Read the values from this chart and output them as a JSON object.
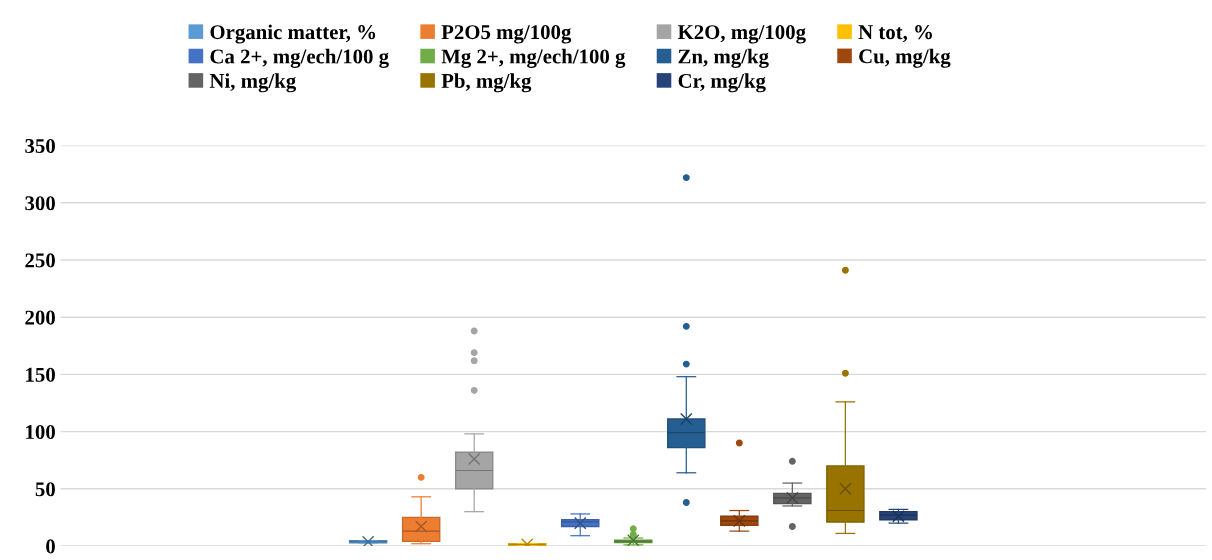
{
  "chart_data": {
    "type": "box",
    "categories": [
      null
    ],
    "ylim": [
      0,
      350
    ],
    "yticks": [
      0,
      50,
      100,
      150,
      200,
      250,
      300,
      350
    ],
    "grid": "y",
    "legend": "top",
    "tick_labels": "y",
    "series": [
      {
        "name": "Organic matter, %",
        "color": "#5b9bd5",
        "boxes": [
          {
            "low": 2.7,
            "q1": 2.7,
            "median": 3.7,
            "q3": 4.7,
            "high": 4.7,
            "mean": 3.7
          }
        ]
      },
      {
        "name": "P2O5 mg/100g",
        "color": "#ed7d31",
        "boxes": [
          {
            "low": 2,
            "q1": 4,
            "median": 13,
            "q3": 25,
            "high": 43,
            "mean": 17,
            "outliers": [
              60
            ]
          }
        ]
      },
      {
        "name": "K2O, mg/100g",
        "color": "#a5a5a5",
        "boxes": [
          {
            "low": 30,
            "q1": 50,
            "median": 66,
            "q3": 82,
            "high": 98,
            "mean": 76,
            "outliers": [
              136,
              162,
              169,
              188
            ]
          }
        ]
      },
      {
        "name": "N tot, %",
        "color": "#ffc000",
        "boxes": [
          {
            "low": 0.7,
            "q1": 0.7,
            "median": 1.3,
            "q3": 2,
            "high": 2,
            "mean": 1.5
          }
        ]
      },
      {
        "name": "Ca 2+, mg/ech/100 g",
        "color": "#4472c4",
        "boxes": [
          {
            "low": 9,
            "q1": 17,
            "median": 21,
            "q3": 23,
            "high": 28,
            "mean": 20
          }
        ]
      },
      {
        "name": "Mg 2+, mg/ech/100 g",
        "color": "#70ad47",
        "boxes": [
          {
            "low": 1,
            "q1": 3,
            "median": 4,
            "q3": 5,
            "high": 7,
            "mean": 5,
            "outliers": [
              8,
              10,
              15
            ]
          }
        ]
      },
      {
        "name": "Zn, mg/kg",
        "color": "#255e91",
        "boxes": [
          {
            "low": 64,
            "q1": 86,
            "median": 99,
            "q3": 111,
            "high": 148,
            "mean": 111,
            "outliers": [
              38,
              159,
              192,
              322
            ]
          }
        ]
      },
      {
        "name": "Cu, mg/kg",
        "color": "#9e480e",
        "boxes": [
          {
            "low": 13,
            "q1": 18,
            "median": 22,
            "q3": 26,
            "high": 31,
            "mean": 22,
            "outliers": [
              90
            ]
          }
        ]
      },
      {
        "name": "Ni, mg/kg",
        "color": "#636363",
        "boxes": [
          {
            "low": 35,
            "q1": 37,
            "median": 42,
            "q3": 46,
            "high": 55,
            "mean": 42,
            "outliers": [
              17,
              74
            ]
          }
        ]
      },
      {
        "name": "Pb, mg/kg",
        "color": "#997300",
        "boxes": [
          {
            "low": 11,
            "q1": 21,
            "median": 31,
            "q3": 70,
            "high": 126,
            "mean": 50,
            "outliers": [
              151,
              241
            ]
          }
        ]
      },
      {
        "name": "Cr, mg/kg",
        "color": "#264478",
        "boxes": [
          {
            "low": 20,
            "q1": 23,
            "median": 27,
            "q3": 30,
            "high": 32,
            "mean": 26
          }
        ]
      }
    ]
  }
}
